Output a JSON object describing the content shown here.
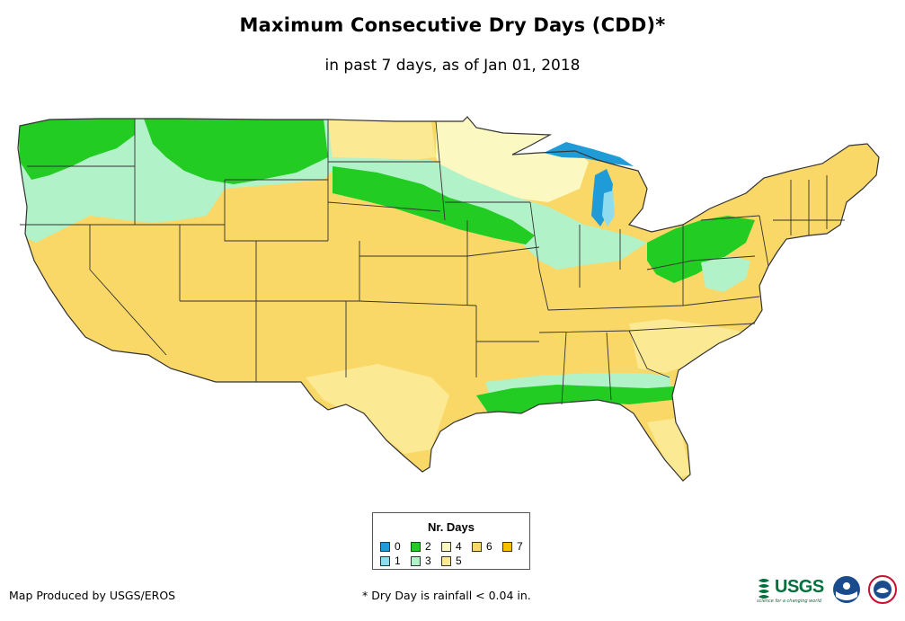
{
  "header": {
    "title": "Maximum Consecutive Dry Days (CDD)*",
    "subtitle": "in past 7 days, as of Jan 01, 2018"
  },
  "legend": {
    "title": "Nr. Days",
    "items": [
      {
        "label": "0",
        "color": "#1f9bd8"
      },
      {
        "label": "1",
        "color": "#8fdcef"
      },
      {
        "label": "2",
        "color": "#22cc22"
      },
      {
        "label": "3",
        "color": "#b2f2c8"
      },
      {
        "label": "4",
        "color": "#fbf8c2"
      },
      {
        "label": "5",
        "color": "#fbe993"
      },
      {
        "label": "6",
        "color": "#f9d867"
      },
      {
        "label": "7",
        "color": "#f5c000"
      }
    ]
  },
  "footer": {
    "credit": "Map Produced by USGS/EROS",
    "footnote": "* Dry Day is rainfall < 0.04 in.",
    "usgs_logo": "USGS",
    "usgs_tagline": "science for a changing world"
  },
  "colors": {
    "background": "#ffffff",
    "state_border": "#333333",
    "lake": "#1f9bd8"
  }
}
